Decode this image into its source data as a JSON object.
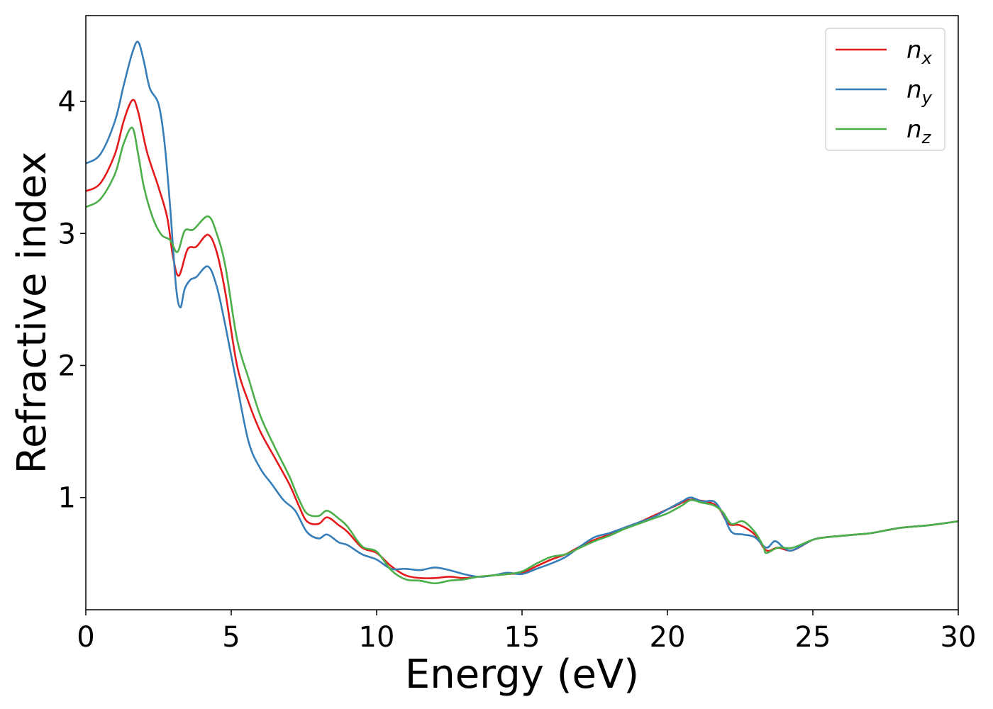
{
  "chart_data": {
    "type": "line",
    "title": "",
    "xlabel": "Energy (eV)",
    "ylabel": "Refractive index",
    "xlim": [
      0,
      30
    ],
    "ylim": [
      0.15,
      4.65
    ],
    "xticks": [
      0,
      5,
      10,
      15,
      20,
      25,
      30
    ],
    "yticks": [
      1,
      2,
      3,
      4
    ],
    "grid": false,
    "legend": {
      "position": "top-right"
    },
    "colors": {
      "nx": "#e41a1c",
      "ny": "#377eb8",
      "nz": "#4daf4a"
    },
    "series": [
      {
        "name": "n",
        "subscript": "x",
        "key": "nx",
        "points": [
          [
            0.0,
            3.32
          ],
          [
            0.5,
            3.38
          ],
          [
            1.0,
            3.6
          ],
          [
            1.3,
            3.85
          ],
          [
            1.6,
            4.01
          ],
          [
            1.8,
            3.92
          ],
          [
            2.1,
            3.62
          ],
          [
            2.5,
            3.35
          ],
          [
            2.8,
            3.12
          ],
          [
            3.0,
            2.82
          ],
          [
            3.2,
            2.68
          ],
          [
            3.5,
            2.88
          ],
          [
            3.8,
            2.9
          ],
          [
            4.2,
            2.99
          ],
          [
            4.5,
            2.86
          ],
          [
            4.8,
            2.55
          ],
          [
            5.2,
            2.0
          ],
          [
            5.6,
            1.72
          ],
          [
            6.0,
            1.5
          ],
          [
            6.5,
            1.3
          ],
          [
            7.0,
            1.1
          ],
          [
            7.3,
            0.95
          ],
          [
            7.6,
            0.82
          ],
          [
            8.0,
            0.8
          ],
          [
            8.3,
            0.85
          ],
          [
            8.7,
            0.79
          ],
          [
            9.0,
            0.74
          ],
          [
            9.5,
            0.62
          ],
          [
            10.0,
            0.58
          ],
          [
            10.5,
            0.48
          ],
          [
            11.0,
            0.41
          ],
          [
            11.5,
            0.39
          ],
          [
            12.0,
            0.39
          ],
          [
            12.5,
            0.4
          ],
          [
            13.0,
            0.39
          ],
          [
            13.5,
            0.4
          ],
          [
            14.0,
            0.41
          ],
          [
            14.5,
            0.42
          ],
          [
            15.0,
            0.43
          ],
          [
            15.5,
            0.48
          ],
          [
            16.0,
            0.53
          ],
          [
            16.5,
            0.57
          ],
          [
            17.0,
            0.63
          ],
          [
            17.5,
            0.68
          ],
          [
            18.0,
            0.72
          ],
          [
            18.5,
            0.77
          ],
          [
            19.0,
            0.81
          ],
          [
            19.5,
            0.86
          ],
          [
            20.0,
            0.91
          ],
          [
            20.3,
            0.94
          ],
          [
            20.7,
            0.98
          ],
          [
            21.0,
            0.98
          ],
          [
            21.5,
            0.96
          ],
          [
            21.8,
            0.91
          ],
          [
            22.1,
            0.8
          ],
          [
            22.5,
            0.79
          ],
          [
            23.0,
            0.72
          ],
          [
            23.4,
            0.6
          ],
          [
            23.8,
            0.62
          ],
          [
            24.3,
            0.6
          ],
          [
            25.0,
            0.68
          ],
          [
            25.5,
            0.7
          ],
          [
            26.0,
            0.71
          ],
          [
            26.5,
            0.72
          ],
          [
            27.0,
            0.73
          ],
          [
            28.0,
            0.77
          ],
          [
            29.0,
            0.79
          ],
          [
            30.0,
            0.82
          ]
        ]
      },
      {
        "name": "n",
        "subscript": "y",
        "key": "ny",
        "points": [
          [
            0.0,
            3.53
          ],
          [
            0.5,
            3.6
          ],
          [
            1.0,
            3.85
          ],
          [
            1.3,
            4.12
          ],
          [
            1.6,
            4.37
          ],
          [
            1.8,
            4.45
          ],
          [
            2.0,
            4.3
          ],
          [
            2.2,
            4.1
          ],
          [
            2.5,
            3.98
          ],
          [
            2.7,
            3.7
          ],
          [
            2.9,
            3.2
          ],
          [
            3.1,
            2.6
          ],
          [
            3.25,
            2.44
          ],
          [
            3.4,
            2.58
          ],
          [
            3.6,
            2.65
          ],
          [
            3.8,
            2.67
          ],
          [
            4.2,
            2.75
          ],
          [
            4.5,
            2.6
          ],
          [
            4.8,
            2.3
          ],
          [
            5.2,
            1.85
          ],
          [
            5.6,
            1.42
          ],
          [
            6.0,
            1.22
          ],
          [
            6.4,
            1.1
          ],
          [
            6.8,
            0.98
          ],
          [
            7.2,
            0.9
          ],
          [
            7.6,
            0.74
          ],
          [
            8.0,
            0.69
          ],
          [
            8.3,
            0.72
          ],
          [
            8.7,
            0.66
          ],
          [
            9.0,
            0.64
          ],
          [
            9.5,
            0.57
          ],
          [
            10.0,
            0.53
          ],
          [
            10.5,
            0.46
          ],
          [
            11.0,
            0.46
          ],
          [
            11.5,
            0.45
          ],
          [
            12.0,
            0.47
          ],
          [
            12.5,
            0.45
          ],
          [
            13.0,
            0.42
          ],
          [
            13.5,
            0.4
          ],
          [
            14.0,
            0.41
          ],
          [
            14.5,
            0.43
          ],
          [
            15.0,
            0.42
          ],
          [
            15.5,
            0.46
          ],
          [
            16.0,
            0.5
          ],
          [
            16.5,
            0.55
          ],
          [
            17.0,
            0.63
          ],
          [
            17.5,
            0.7
          ],
          [
            18.0,
            0.73
          ],
          [
            18.5,
            0.77
          ],
          [
            19.0,
            0.81
          ],
          [
            19.5,
            0.85
          ],
          [
            20.0,
            0.91
          ],
          [
            20.5,
            0.97
          ],
          [
            20.8,
            1.0
          ],
          [
            21.2,
            0.97
          ],
          [
            21.6,
            0.97
          ],
          [
            21.9,
            0.88
          ],
          [
            22.2,
            0.74
          ],
          [
            22.6,
            0.72
          ],
          [
            23.0,
            0.7
          ],
          [
            23.4,
            0.62
          ],
          [
            23.7,
            0.67
          ],
          [
            24.0,
            0.62
          ],
          [
            24.3,
            0.6
          ],
          [
            25.0,
            0.68
          ],
          [
            25.5,
            0.7
          ],
          [
            26.0,
            0.71
          ],
          [
            26.5,
            0.72
          ],
          [
            27.0,
            0.73
          ],
          [
            28.0,
            0.77
          ],
          [
            29.0,
            0.79
          ],
          [
            30.0,
            0.82
          ]
        ]
      },
      {
        "name": "n",
        "subscript": "z",
        "key": "nz",
        "points": [
          [
            0.0,
            3.2
          ],
          [
            0.5,
            3.26
          ],
          [
            1.0,
            3.45
          ],
          [
            1.3,
            3.68
          ],
          [
            1.6,
            3.8
          ],
          [
            1.8,
            3.6
          ],
          [
            2.0,
            3.35
          ],
          [
            2.3,
            3.12
          ],
          [
            2.6,
            2.99
          ],
          [
            2.9,
            2.95
          ],
          [
            3.15,
            2.86
          ],
          [
            3.4,
            3.02
          ],
          [
            3.7,
            3.03
          ],
          [
            4.2,
            3.13
          ],
          [
            4.5,
            3.0
          ],
          [
            4.8,
            2.75
          ],
          [
            5.2,
            2.2
          ],
          [
            5.6,
            1.9
          ],
          [
            6.0,
            1.62
          ],
          [
            6.5,
            1.38
          ],
          [
            7.0,
            1.16
          ],
          [
            7.3,
            1.0
          ],
          [
            7.6,
            0.88
          ],
          [
            8.0,
            0.86
          ],
          [
            8.3,
            0.9
          ],
          [
            8.7,
            0.84
          ],
          [
            9.0,
            0.78
          ],
          [
            9.5,
            0.63
          ],
          [
            10.0,
            0.59
          ],
          [
            10.5,
            0.45
          ],
          [
            11.0,
            0.38
          ],
          [
            11.5,
            0.37
          ],
          [
            12.0,
            0.35
          ],
          [
            12.5,
            0.37
          ],
          [
            13.0,
            0.38
          ],
          [
            13.5,
            0.4
          ],
          [
            14.0,
            0.41
          ],
          [
            14.5,
            0.42
          ],
          [
            15.0,
            0.44
          ],
          [
            15.5,
            0.5
          ],
          [
            16.0,
            0.55
          ],
          [
            16.5,
            0.57
          ],
          [
            17.0,
            0.62
          ],
          [
            17.5,
            0.67
          ],
          [
            18.0,
            0.71
          ],
          [
            18.5,
            0.76
          ],
          [
            19.0,
            0.8
          ],
          [
            19.5,
            0.84
          ],
          [
            20.0,
            0.88
          ],
          [
            20.5,
            0.94
          ],
          [
            20.8,
            0.98
          ],
          [
            21.2,
            0.96
          ],
          [
            21.6,
            0.94
          ],
          [
            21.9,
            0.89
          ],
          [
            22.2,
            0.8
          ],
          [
            22.6,
            0.82
          ],
          [
            23.0,
            0.74
          ],
          [
            23.3,
            0.63
          ],
          [
            23.4,
            0.58
          ],
          [
            23.8,
            0.62
          ],
          [
            24.3,
            0.62
          ],
          [
            25.0,
            0.68
          ],
          [
            25.5,
            0.7
          ],
          [
            26.0,
            0.71
          ],
          [
            26.5,
            0.72
          ],
          [
            27.0,
            0.73
          ],
          [
            28.0,
            0.77
          ],
          [
            29.0,
            0.79
          ],
          [
            30.0,
            0.82
          ]
        ]
      }
    ]
  }
}
